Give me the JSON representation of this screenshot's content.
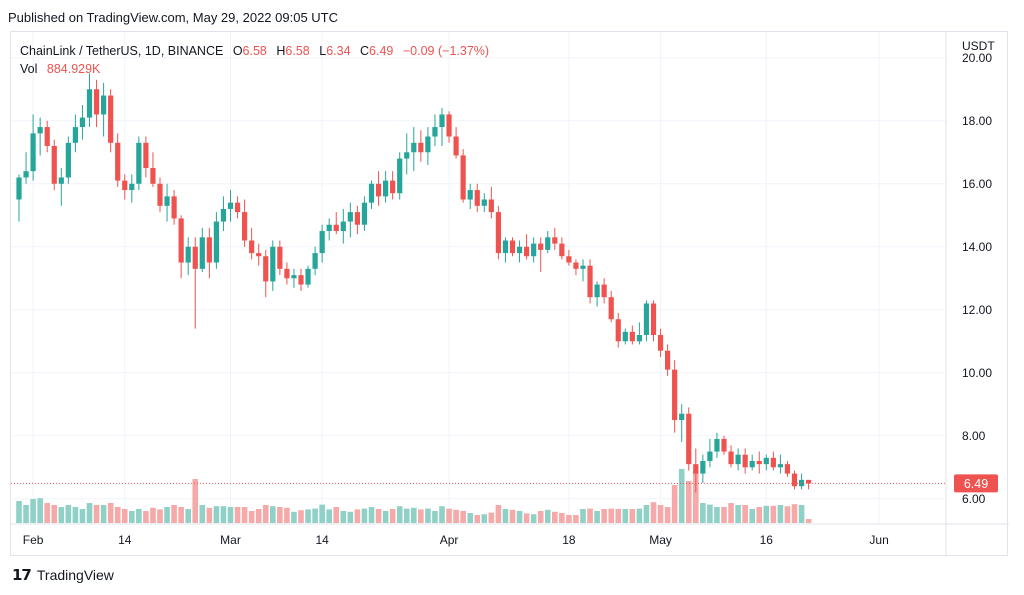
{
  "published": "Published on TradingView.com, May 29, 2022 09:05 UTC",
  "footer": {
    "logo_text": "TradingView"
  },
  "legend": {
    "symbol": "ChainLink / TetherUS, 1D, BINANCE",
    "o_label": "O",
    "o_value": "6.58",
    "h_label": "H",
    "h_value": "6.58",
    "l_label": "L",
    "l_value": "6.34",
    "c_label": "C",
    "c_value": "6.49",
    "change": "−0.09 (−1.37%)",
    "vol_label": "Vol",
    "vol_value": "884.929K"
  },
  "colors": {
    "up": "#26a69a",
    "down": "#ef5350",
    "vol_up": "#8fd1c7",
    "vol_down": "#f5a9a8",
    "grid": "#f0f3fa",
    "price_line": "#ef5350"
  },
  "chart_data": {
    "type": "candlestick",
    "currency": "USDT",
    "ylim": [
      5.2,
      20.5
    ],
    "yticks": [
      "6.00",
      "8.00",
      "10.00",
      "12.00",
      "14.00",
      "16.00",
      "18.00",
      "20.00"
    ],
    "xticks": [
      {
        "index": 2,
        "label": "Feb"
      },
      {
        "index": 15,
        "label": "14"
      },
      {
        "index": 30,
        "label": "Mar"
      },
      {
        "index": 43,
        "label": "14"
      },
      {
        "index": 61,
        "label": "Apr"
      },
      {
        "index": 78,
        "label": "18"
      },
      {
        "index": 91,
        "label": "May"
      },
      {
        "index": 106,
        "label": "16"
      },
      {
        "index": 122,
        "label": "Jun"
      }
    ],
    "current_price": "6.49",
    "candles": [
      [
        15.5,
        16.3,
        14.8,
        16.2,
        0.55
      ],
      [
        16.2,
        17.0,
        16.0,
        16.4,
        0.45
      ],
      [
        16.4,
        18.2,
        16.1,
        17.6,
        0.6
      ],
      [
        17.6,
        18.1,
        16.9,
        17.8,
        0.62
      ],
      [
        17.8,
        18.0,
        17.0,
        17.2,
        0.5
      ],
      [
        17.2,
        17.4,
        15.8,
        16.0,
        0.45
      ],
      [
        16.0,
        16.5,
        15.3,
        16.2,
        0.4
      ],
      [
        16.2,
        17.5,
        16.0,
        17.3,
        0.45
      ],
      [
        17.3,
        18.2,
        17.0,
        17.8,
        0.4
      ],
      [
        17.8,
        18.5,
        17.4,
        18.1,
        0.35
      ],
      [
        18.1,
        19.5,
        17.8,
        19.0,
        0.5
      ],
      [
        19.0,
        19.3,
        17.8,
        18.2,
        0.45
      ],
      [
        18.2,
        19.2,
        17.5,
        18.8,
        0.45
      ],
      [
        18.8,
        19.0,
        17.0,
        17.3,
        0.5
      ],
      [
        17.3,
        17.6,
        15.9,
        16.1,
        0.4
      ],
      [
        16.1,
        16.3,
        15.5,
        15.8,
        0.35
      ],
      [
        15.8,
        16.3,
        15.4,
        16.0,
        0.3
      ],
      [
        16.0,
        17.5,
        15.8,
        17.3,
        0.35
      ],
      [
        17.3,
        17.5,
        16.2,
        16.5,
        0.3
      ],
      [
        16.5,
        17.0,
        15.9,
        16.0,
        0.38
      ],
      [
        16.0,
        16.2,
        15.1,
        15.3,
        0.34
      ],
      [
        15.3,
        16.0,
        14.8,
        15.6,
        0.4
      ],
      [
        15.6,
        15.8,
        14.7,
        14.9,
        0.45
      ],
      [
        14.9,
        15.0,
        13.0,
        13.5,
        0.4
      ],
      [
        13.5,
        14.3,
        13.1,
        14.0,
        0.35
      ],
      [
        14.0,
        14.3,
        11.4,
        13.3,
        1.1
      ],
      [
        13.3,
        14.6,
        13.2,
        14.3,
        0.45
      ],
      [
        14.3,
        14.6,
        13.0,
        13.5,
        0.38
      ],
      [
        13.5,
        15.1,
        13.3,
        14.8,
        0.42
      ],
      [
        14.8,
        15.6,
        14.5,
        15.2,
        0.42
      ],
      [
        15.2,
        15.8,
        14.8,
        15.4,
        0.4
      ],
      [
        15.4,
        15.6,
        14.9,
        15.1,
        0.4
      ],
      [
        15.1,
        15.5,
        14.0,
        14.2,
        0.4
      ],
      [
        14.2,
        14.6,
        13.6,
        13.8,
        0.3
      ],
      [
        13.8,
        14.1,
        13.4,
        13.7,
        0.35
      ],
      [
        13.7,
        13.9,
        12.4,
        12.9,
        0.45
      ],
      [
        12.9,
        14.2,
        12.6,
        14.0,
        0.42
      ],
      [
        14.0,
        14.2,
        13.1,
        13.3,
        0.4
      ],
      [
        13.3,
        13.5,
        12.8,
        13.0,
        0.38
      ],
      [
        13.0,
        13.3,
        12.7,
        13.1,
        0.28
      ],
      [
        13.1,
        13.3,
        12.6,
        12.8,
        0.32
      ],
      [
        12.8,
        13.4,
        12.7,
        13.3,
        0.34
      ],
      [
        13.3,
        14.0,
        13.1,
        13.8,
        0.36
      ],
      [
        13.8,
        14.7,
        13.5,
        14.5,
        0.46
      ],
      [
        14.5,
        14.9,
        14.2,
        14.7,
        0.34
      ],
      [
        14.7,
        15.1,
        14.4,
        14.5,
        0.4
      ],
      [
        14.5,
        15.2,
        14.1,
        14.8,
        0.3
      ],
      [
        14.8,
        15.4,
        14.3,
        15.1,
        0.28
      ],
      [
        15.1,
        15.3,
        14.4,
        14.7,
        0.34
      ],
      [
        14.7,
        15.6,
        14.5,
        15.4,
        0.36
      ],
      [
        15.4,
        16.1,
        15.2,
        16.0,
        0.4
      ],
      [
        16.0,
        16.4,
        15.3,
        15.6,
        0.35
      ],
      [
        15.6,
        16.4,
        15.4,
        16.1,
        0.3
      ],
      [
        16.1,
        16.4,
        15.5,
        15.7,
        0.35
      ],
      [
        15.7,
        17.0,
        15.5,
        16.8,
        0.42
      ],
      [
        16.8,
        17.6,
        16.3,
        17.0,
        0.36
      ],
      [
        17.0,
        17.8,
        16.4,
        17.3,
        0.38
      ],
      [
        17.3,
        17.7,
        16.7,
        17.0,
        0.34
      ],
      [
        17.0,
        17.8,
        16.6,
        17.5,
        0.36
      ],
      [
        17.5,
        18.2,
        17.2,
        17.8,
        0.3
      ],
      [
        17.8,
        18.4,
        17.2,
        18.2,
        0.42
      ],
      [
        18.2,
        18.3,
        17.3,
        17.5,
        0.36
      ],
      [
        17.5,
        17.8,
        16.8,
        16.9,
        0.33
      ],
      [
        16.9,
        17.1,
        15.4,
        15.5,
        0.3
      ],
      [
        15.5,
        16.0,
        15.2,
        15.8,
        0.25
      ],
      [
        15.8,
        16.0,
        15.1,
        15.3,
        0.2
      ],
      [
        15.3,
        15.7,
        15.1,
        15.5,
        0.22
      ],
      [
        15.5,
        15.9,
        14.9,
        15.1,
        0.26
      ],
      [
        15.1,
        15.3,
        13.6,
        13.8,
        0.45
      ],
      [
        13.8,
        14.3,
        13.5,
        14.2,
        0.35
      ],
      [
        14.2,
        14.3,
        13.7,
        13.8,
        0.33
      ],
      [
        13.8,
        14.2,
        13.5,
        14.0,
        0.3
      ],
      [
        14.0,
        14.4,
        13.6,
        13.7,
        0.24
      ],
      [
        13.7,
        14.3,
        13.5,
        14.1,
        0.22
      ],
      [
        14.1,
        14.3,
        13.2,
        13.9,
        0.3
      ],
      [
        13.9,
        14.5,
        13.8,
        14.3,
        0.33
      ],
      [
        14.3,
        14.6,
        13.9,
        14.1,
        0.28
      ],
      [
        14.1,
        14.3,
        13.6,
        13.7,
        0.25
      ],
      [
        13.7,
        13.9,
        13.4,
        13.5,
        0.2
      ],
      [
        13.5,
        13.6,
        13.1,
        13.3,
        0.2
      ],
      [
        13.3,
        13.6,
        12.9,
        13.4,
        0.35
      ],
      [
        13.4,
        13.6,
        12.2,
        12.4,
        0.36
      ],
      [
        12.4,
        12.9,
        12.1,
        12.8,
        0.3
      ],
      [
        12.8,
        13.0,
        12.2,
        12.4,
        0.35
      ],
      [
        12.4,
        12.6,
        11.6,
        11.7,
        0.36
      ],
      [
        11.7,
        11.9,
        10.8,
        11.0,
        0.35
      ],
      [
        11.0,
        11.4,
        10.9,
        11.3,
        0.35
      ],
      [
        11.3,
        11.5,
        10.9,
        11.0,
        0.35
      ],
      [
        11.0,
        11.6,
        10.9,
        11.2,
        0.36
      ],
      [
        11.2,
        12.3,
        11.0,
        12.2,
        0.45
      ],
      [
        12.2,
        12.3,
        11.0,
        11.2,
        0.52
      ],
      [
        11.2,
        11.4,
        10.5,
        10.7,
        0.45
      ],
      [
        10.7,
        10.9,
        9.9,
        10.1,
        0.4
      ],
      [
        10.1,
        10.4,
        8.1,
        8.5,
        0.95
      ],
      [
        8.5,
        9.0,
        7.8,
        8.7,
        1.35
      ],
      [
        8.7,
        8.9,
        6.9,
        7.1,
        1.05
      ],
      [
        7.1,
        7.6,
        6.2,
        6.8,
        1.3
      ],
      [
        6.8,
        7.4,
        6.5,
        7.2,
        0.5
      ],
      [
        7.2,
        7.9,
        7.0,
        7.5,
        0.46
      ],
      [
        7.5,
        8.1,
        7.3,
        7.9,
        0.4
      ],
      [
        7.9,
        8.0,
        7.4,
        7.5,
        0.4
      ],
      [
        7.5,
        7.7,
        7.0,
        7.1,
        0.5
      ],
      [
        7.1,
        7.6,
        6.9,
        7.4,
        0.45
      ],
      [
        7.4,
        7.6,
        6.8,
        7.0,
        0.45
      ],
      [
        7.0,
        7.4,
        6.9,
        7.2,
        0.35
      ],
      [
        7.2,
        7.5,
        6.8,
        7.1,
        0.4
      ],
      [
        7.1,
        7.4,
        6.9,
        7.3,
        0.43
      ],
      [
        7.3,
        7.5,
        6.9,
        7.0,
        0.43
      ],
      [
        7.0,
        7.4,
        6.8,
        7.1,
        0.45
      ],
      [
        7.1,
        7.2,
        6.7,
        6.8,
        0.42
      ],
      [
        6.8,
        6.9,
        6.3,
        6.4,
        0.47
      ],
      [
        6.4,
        6.8,
        6.3,
        6.6,
        0.45
      ],
      [
        6.6,
        6.6,
        6.3,
        6.49,
        0.1
      ]
    ]
  }
}
